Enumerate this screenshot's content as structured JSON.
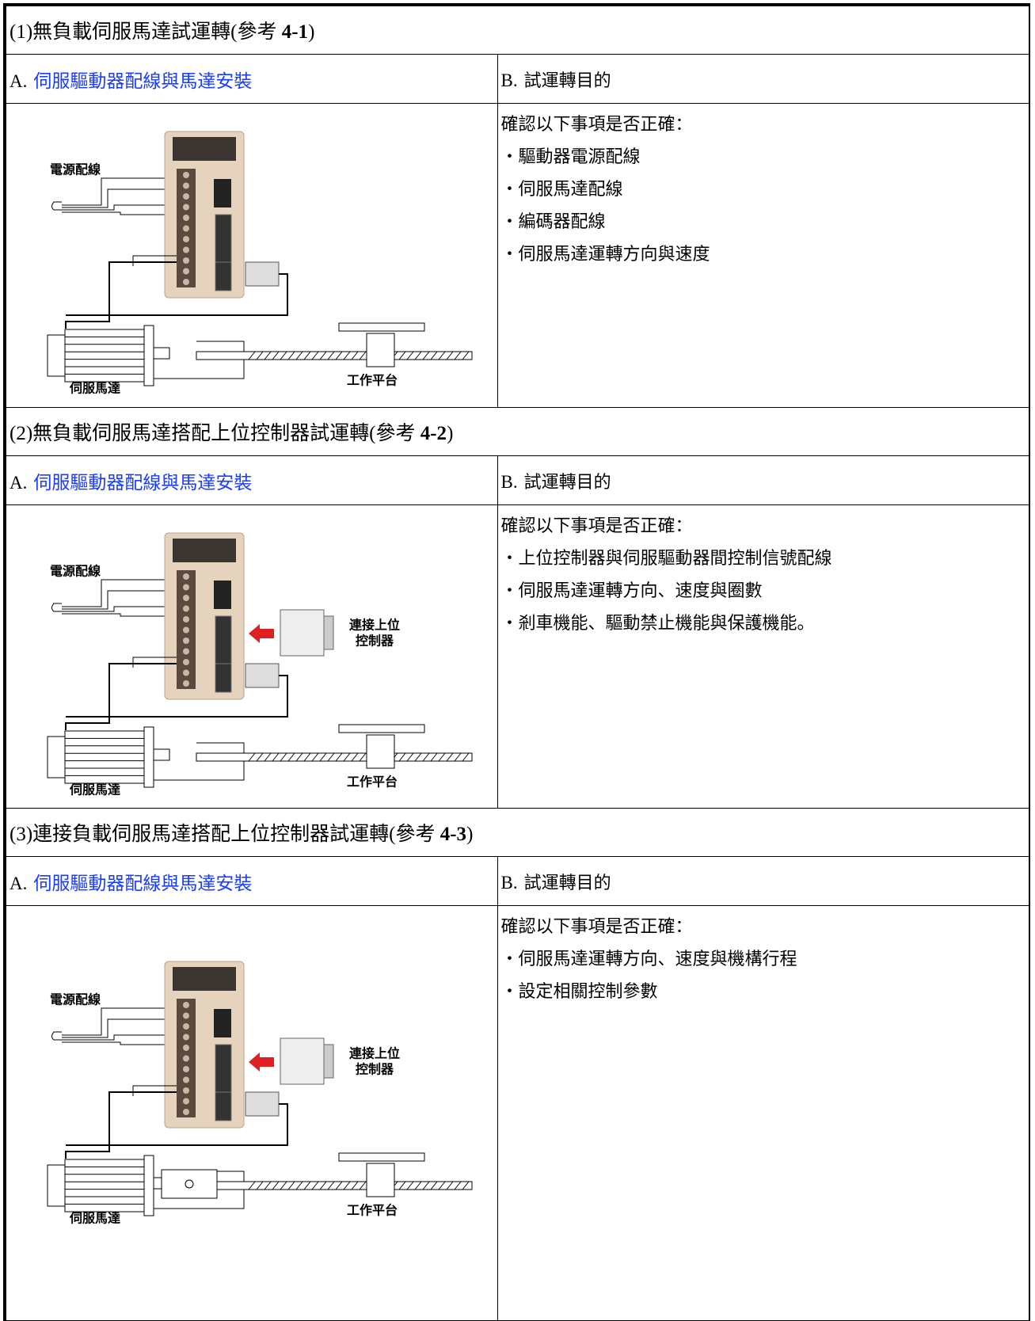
{
  "sections": [
    {
      "title": {
        "text": "(1)無負載伺服馬達試運轉(參考",
        "ref": "4-1",
        "close": ")"
      },
      "left_header": {
        "label": "A.",
        "link": "伺服驅動器配線與馬達安裝"
      },
      "right_header": {
        "label": "B.",
        "text": "試運轉目的"
      },
      "diagram": {
        "power_label": "電源配線",
        "motor_label": "伺服馬達",
        "platform_label": "工作平台"
      },
      "intro": "確認以下事項是否正確：",
      "items": [
        "・驅動器電源配線",
        "・伺服馬達配線",
        "・編碼器配線",
        "・伺服馬達運轉方向與速度"
      ]
    },
    {
      "title": {
        "text": "(2)無負載伺服馬達搭配上位控制器試運轉(參考",
        "ref": "4-2",
        "close": ")"
      },
      "left_header": {
        "label": "A.",
        "link": "伺服驅動器配線與馬達安裝"
      },
      "right_header": {
        "label": "B.",
        "text": "試運轉目的"
      },
      "diagram": {
        "power_label": "電源配線",
        "motor_label": "伺服馬達",
        "platform_label": "工作平台",
        "controller_label": [
          "連接上位",
          "控制器"
        ]
      },
      "intro": "確認以下事項是否正確：",
      "items": [
        "・上位控制器與伺服驅動器間控制信號配線",
        "・伺服馬達運轉方向、速度與圈數",
        "・剎車機能、驅動禁止機能與保護機能。"
      ]
    },
    {
      "title": {
        "text": "(3)連接負載伺服馬達搭配上位控制器試運轉(參考",
        "ref": "4-3",
        "close": ")"
      },
      "left_header": {
        "label": "A.",
        "link": "伺服驅動器配線與馬達安裝"
      },
      "right_header": {
        "label": "B.",
        "text": "試運轉目的"
      },
      "diagram": {
        "power_label": "電源配線",
        "motor_label": "伺服馬達",
        "platform_label": "工作平台",
        "controller_label": [
          "連接上位",
          "控制器"
        ],
        "coupling": true
      },
      "intro": "確認以下事項是否正確：",
      "items": [
        "・伺服馬達運轉方向、速度與機構行程",
        "・設定相關控制參數"
      ]
    }
  ]
}
